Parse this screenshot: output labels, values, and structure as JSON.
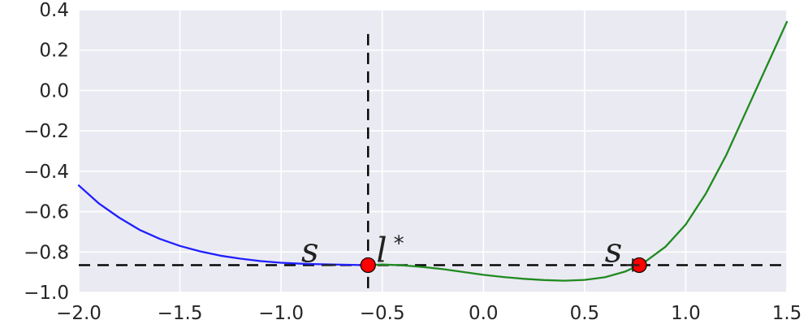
{
  "chart_data": {
    "type": "line",
    "title": "",
    "xlabel": "",
    "ylabel": "",
    "xlim": [
      -2.0,
      1.5
    ],
    "ylim": [
      -1.0,
      0.4
    ],
    "grid": true,
    "xticks": [
      -2.0,
      -1.5,
      -1.0,
      -0.5,
      0.0,
      0.5,
      1.0,
      1.5
    ],
    "xtick_labels": [
      "−2.0",
      "−1.5",
      "−1.0",
      "−0.5",
      "0.0",
      "0.5",
      "1.0",
      "1.5"
    ],
    "yticks": [
      0.4,
      0.2,
      0.0,
      -0.2,
      -0.4,
      -0.6,
      -0.8,
      -1.0
    ],
    "ytick_labels": [
      "0.4",
      "0.2",
      "0.0",
      "−0.2",
      "−0.4",
      "−0.6",
      "−0.8",
      "−1.0"
    ],
    "series": [
      {
        "color": "#1f1fff",
        "points": [
          [
            -2.0,
            -0.47
          ],
          [
            -1.9,
            -0.56
          ],
          [
            -1.8,
            -0.63
          ],
          [
            -1.7,
            -0.69
          ],
          [
            -1.6,
            -0.735
          ],
          [
            -1.5,
            -0.77
          ],
          [
            -1.4,
            -0.797
          ],
          [
            -1.3,
            -0.818
          ],
          [
            -1.2,
            -0.833
          ],
          [
            -1.1,
            -0.845
          ],
          [
            -1.0,
            -0.853
          ],
          [
            -0.9,
            -0.858
          ],
          [
            -0.8,
            -0.861
          ],
          [
            -0.7,
            -0.863
          ],
          [
            -0.6,
            -0.865
          ],
          [
            -0.57,
            -0.865
          ]
        ]
      },
      {
        "color": "#1f8a1f",
        "points": [
          [
            -0.57,
            -0.865
          ],
          [
            -0.5,
            -0.862
          ],
          [
            -0.4,
            -0.866
          ],
          [
            -0.3,
            -0.874
          ],
          [
            -0.2,
            -0.885
          ],
          [
            -0.1,
            -0.899
          ],
          [
            0.0,
            -0.913
          ],
          [
            0.1,
            -0.924
          ],
          [
            0.2,
            -0.933
          ],
          [
            0.3,
            -0.939
          ],
          [
            0.4,
            -0.942
          ],
          [
            0.5,
            -0.938
          ],
          [
            0.6,
            -0.925
          ],
          [
            0.7,
            -0.897
          ],
          [
            0.77,
            -0.865
          ],
          [
            0.8,
            -0.848
          ],
          [
            0.9,
            -0.774
          ],
          [
            1.0,
            -0.664
          ],
          [
            1.1,
            -0.51
          ],
          [
            1.2,
            -0.32
          ],
          [
            1.3,
            -0.1
          ],
          [
            1.4,
            0.12
          ],
          [
            1.5,
            0.34
          ]
        ]
      }
    ],
    "reference_lines": [
      {
        "orientation": "horizontal",
        "y": -0.865,
        "style": "dashed",
        "color": "#000000"
      },
      {
        "orientation": "vertical",
        "x": -0.57,
        "style": "dashed",
        "color": "#000000",
        "y_range": [
          -1.0,
          0.28
        ]
      }
    ],
    "markers": [
      {
        "x": -0.57,
        "y": -0.865,
        "color": "#ff0000"
      },
      {
        "x": 0.77,
        "y": -0.865,
        "color": "#ff0000"
      }
    ],
    "annotations": [
      {
        "text": "s",
        "sub": "−",
        "x": -0.9,
        "y": -0.8
      },
      {
        "text": "l",
        "sup": "*",
        "x": -0.53,
        "y": -0.8
      },
      {
        "text": "s",
        "sub": "+",
        "x": 0.6,
        "y": -0.8
      }
    ]
  },
  "colors": {
    "background": "#eaeaf2",
    "grid": "#ffffff",
    "marker_edge": "#000000"
  }
}
